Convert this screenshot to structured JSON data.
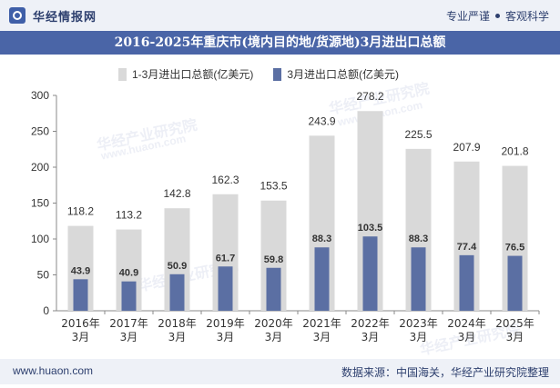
{
  "header": {
    "brand": "华经情报网",
    "slogan_left": "专业严谨",
    "slogan_right": "客观科学"
  },
  "watermark": {
    "cn": "华经产业研究院",
    "url": "www.huaon.com"
  },
  "footer": {
    "url": "www.huaon.com",
    "source": "数据来源：中国海关，华经产业研究院整理"
  },
  "colors": {
    "series1": "#d9d9d9",
    "series2": "#5b6fa3",
    "title_bg": "#4a65a7",
    "header_bg": "#eef1f7"
  },
  "chart_data": {
    "type": "bar",
    "title": "2016-2025年重庆市(境内目的地/货源地)3月进出口总额",
    "categories": [
      "2016年\n3月",
      "2017年\n3月",
      "2018年\n3月",
      "2019年\n3月",
      "2020年\n3月",
      "2021年\n3月",
      "2022年\n3月",
      "2023年\n3月",
      "2024年\n3月",
      "2025年\n3月"
    ],
    "series": [
      {
        "name": "1-3月进出口总额(亿美元)",
        "values": [
          118.2,
          113.2,
          142.8,
          162.3,
          153.5,
          243.9,
          278.2,
          225.5,
          207.9,
          201.8
        ]
      },
      {
        "name": "3月进出口总额(亿美元)",
        "values": [
          43.9,
          40.9,
          50.9,
          61.7,
          59.8,
          88.3,
          103.5,
          88.3,
          77.4,
          76.5
        ]
      }
    ],
    "ylim": [
      0,
      300
    ],
    "yticks": [
      0,
      50,
      100,
      150,
      200,
      250,
      300
    ],
    "legend_position": "top",
    "grid": false,
    "xlabel": "",
    "ylabel": ""
  }
}
